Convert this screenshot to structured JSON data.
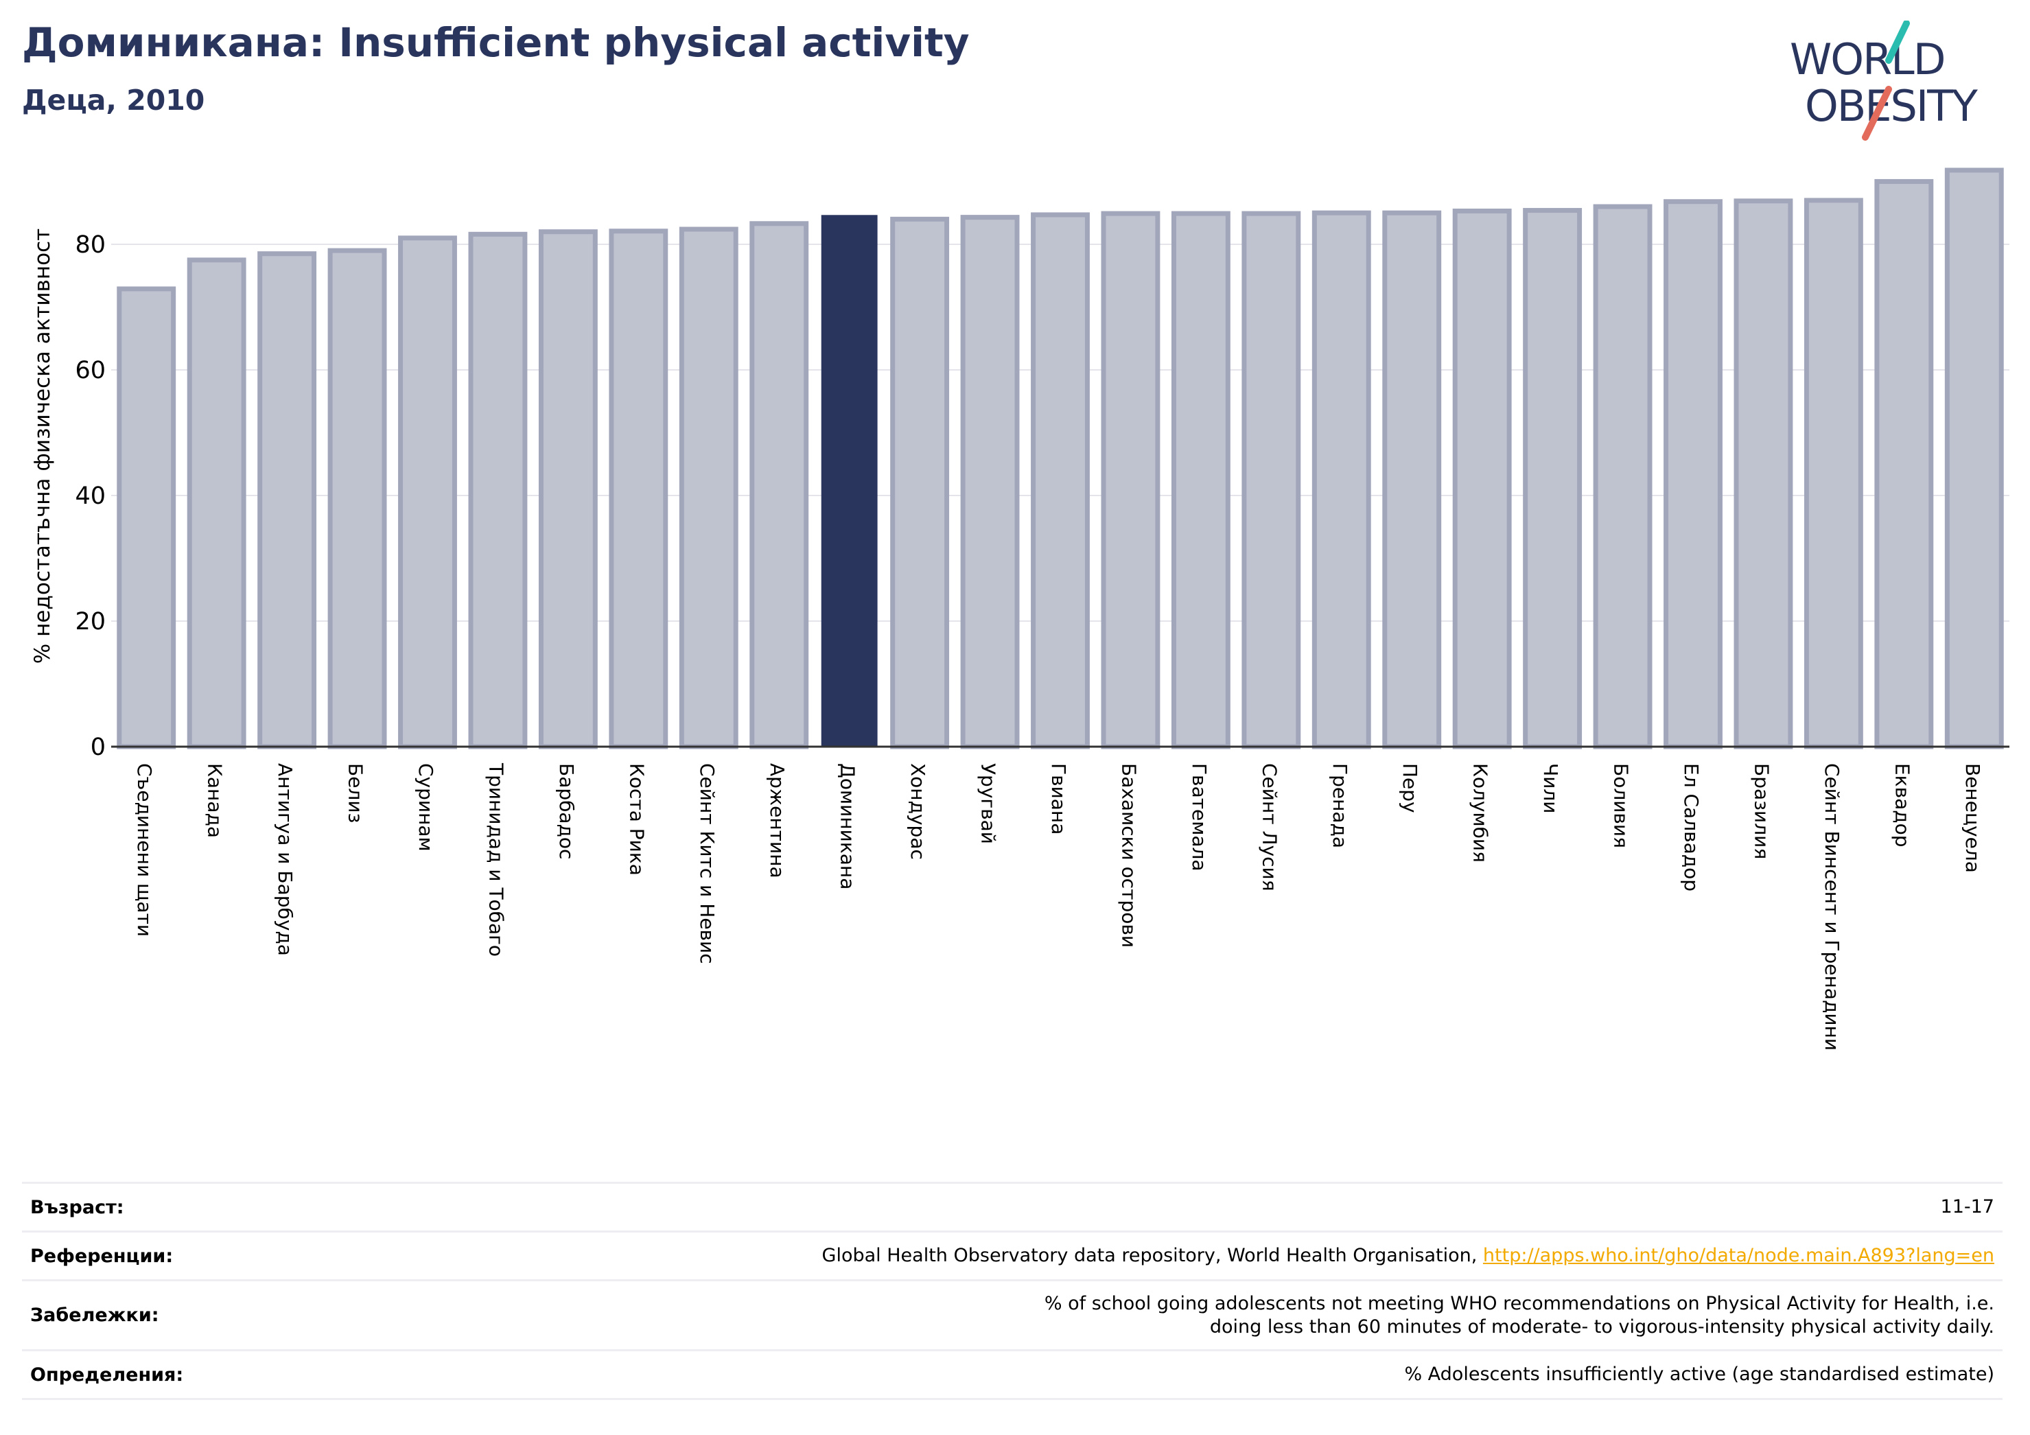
{
  "header": {
    "title": "Доминикана: Insufficient physical activity",
    "subtitle": "Деца, 2010"
  },
  "logo": {
    "line1": "WORLD",
    "line2": "OBESITY",
    "colors": {
      "text": "#2a355e",
      "teal": "#2bbcb0",
      "coral": "#e36b5b"
    }
  },
  "colors": {
    "bar": "#bfc2cf",
    "bar_edge": "#a2a6bb",
    "highlight": "#2a355e",
    "grid": "#e4e4ea",
    "axis": "#333333"
  },
  "chart_data": {
    "type": "bar",
    "title": "",
    "xlabel": "",
    "ylabel": "% недостатъчна физическа активност",
    "ylim": [
      0,
      93
    ],
    "yticks": [
      0,
      20,
      40,
      60,
      80
    ],
    "grid": true,
    "highlight": "Доминикана",
    "categories": [
      "Съединени щати",
      "Канада",
      "Антигуа и Барбуда",
      "Белиз",
      "Суринам",
      "Тринидад и Тобаго",
      "Барбадос",
      "Коста Рика",
      "Сейнт Китс и Невис",
      "Аржентина",
      "Доминикана",
      "Хондурас",
      "Уругвай",
      "Гвиана",
      "Бахамски острови",
      "Гватемала",
      "Сейнт Лусия",
      "Гренада",
      "Перу",
      "Колумбия",
      "Чили",
      "Боливия",
      "Ел Салвадор",
      "Бразилия",
      "Сейнт Винсент и Гренадини",
      "Еквадор",
      "Венецуела"
    ],
    "values": [
      72.9,
      77.5,
      78.5,
      79.0,
      81.0,
      81.6,
      82.0,
      82.1,
      82.4,
      83.3,
      84.5,
      84.0,
      84.3,
      84.7,
      84.9,
      84.9,
      84.9,
      85.0,
      85.0,
      85.3,
      85.4,
      86.0,
      86.8,
      86.9,
      87.0,
      90.0,
      91.8
    ]
  },
  "info": [
    {
      "key": "Възраст:",
      "value": "11-17"
    },
    {
      "key": "Референции:",
      "value": "Global Health Observatory data repository, World Health Organisation, ",
      "link": "http://apps.who.int/gho/data/node.main.A893?lang=en"
    },
    {
      "key": "Забележки:",
      "value": "% of school going adolescents not meeting WHO recommendations on Physical Activity for Health, i.e. doing less than 60 minutes of moderate- to vigorous-intensity physical activity daily."
    },
    {
      "key": "Определения:",
      "value": "% Adolescents insufficiently active (age standardised estimate)"
    }
  ]
}
